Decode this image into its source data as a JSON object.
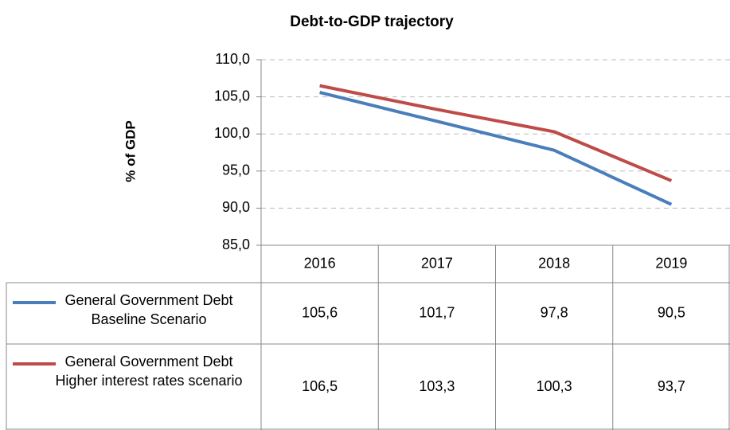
{
  "chart_data": {
    "type": "line",
    "title": "Debt-to-GDP trajectory",
    "y_label": "% of GDP",
    "categories": [
      "2016",
      "2017",
      "2018",
      "2019"
    ],
    "series": [
      {
        "name": "General Government Debt Baseline Scenario",
        "color": "#4a7ebb",
        "values": [
          105.6,
          101.7,
          97.8,
          90.5
        ],
        "value_labels": [
          "105,6",
          "101,7",
          "97,8",
          "90,5"
        ]
      },
      {
        "name": "General Government Debt Higher interest rates scenario",
        "color": "#be4b48",
        "values": [
          106.5,
          103.3,
          100.3,
          93.7
        ],
        "value_labels": [
          "106,5",
          "103,3",
          "100,3",
          "93,7"
        ]
      }
    ],
    "ylim": [
      85,
      110
    ],
    "yticks": [
      {
        "value": 85,
        "label": "85,0"
      },
      {
        "value": 90,
        "label": "90,0"
      },
      {
        "value": 95,
        "label": "95,0"
      },
      {
        "value": 100,
        "label": "100,0"
      },
      {
        "value": 105,
        "label": "105,0"
      },
      {
        "value": 110,
        "label": "110,0"
      }
    ],
    "grid": true
  }
}
